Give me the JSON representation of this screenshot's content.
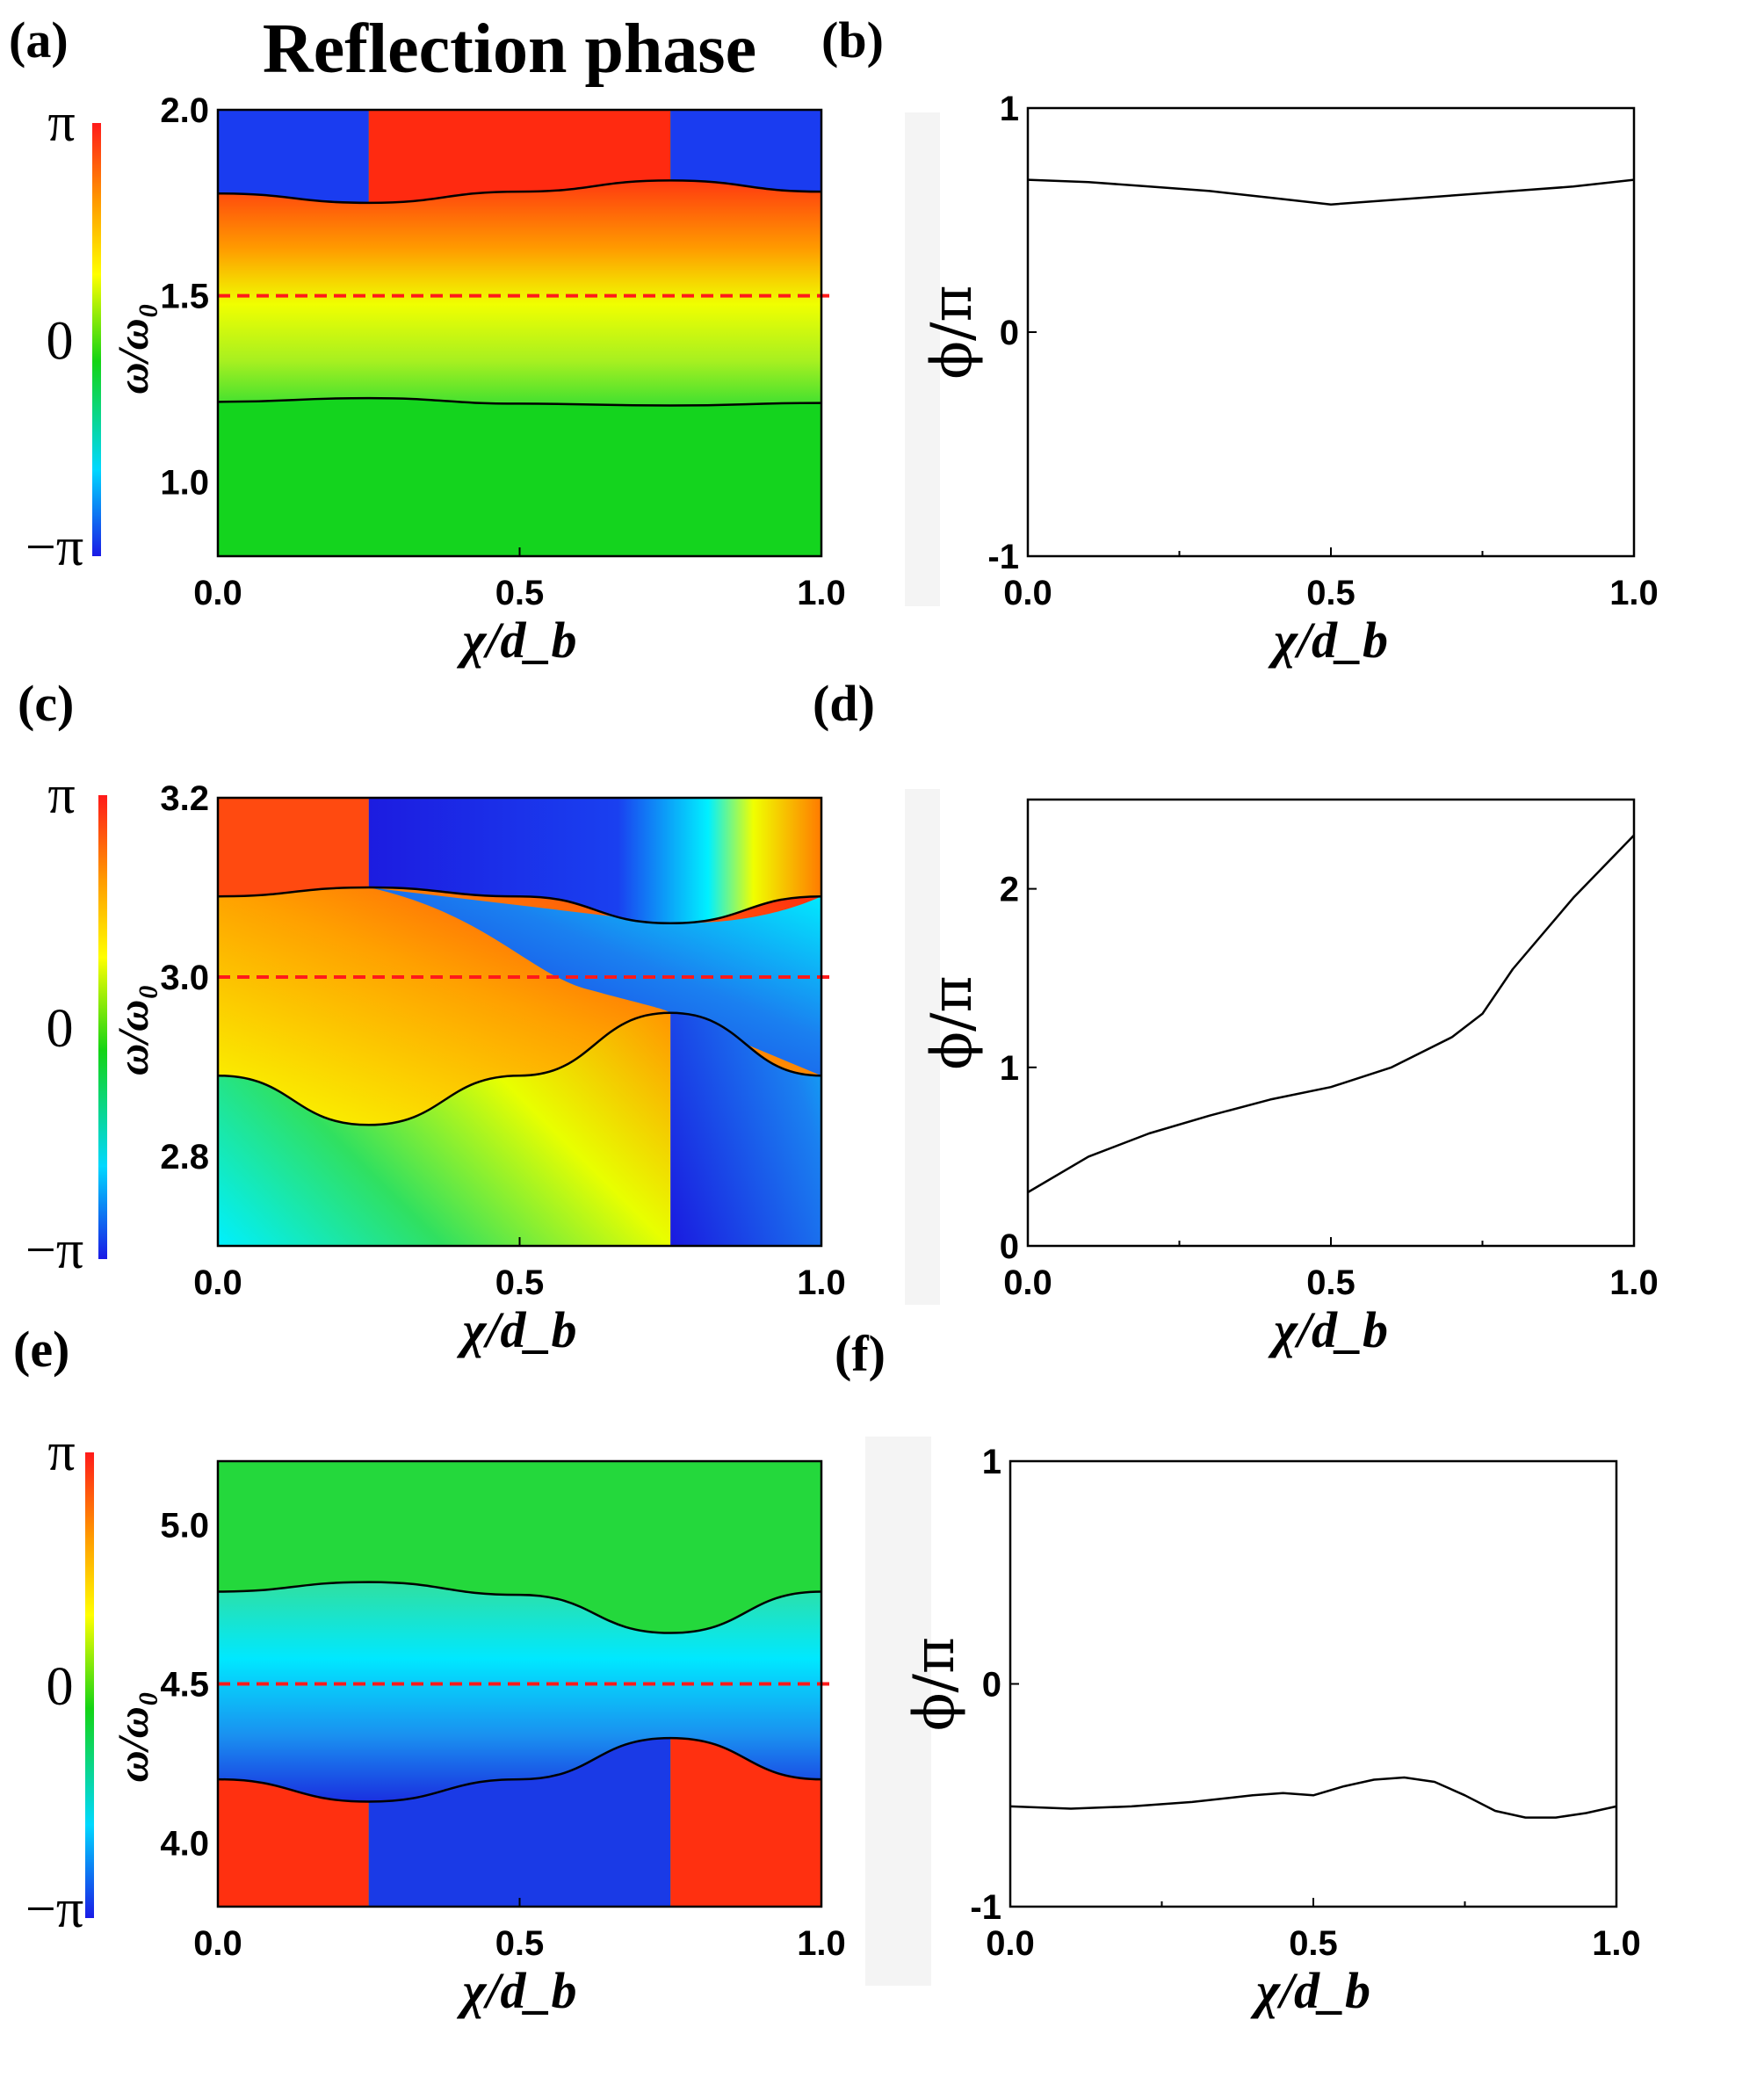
{
  "title": "Reflection phase",
  "colormap": {
    "stops": [
      "#1a1ae6",
      "#00d8ff",
      "#14d414",
      "#ffff00",
      "#ff9900",
      "#ff1a1a"
    ],
    "tick_top": "π",
    "tick_mid": "0",
    "tick_bottom": "−π"
  },
  "chart_data": [
    {
      "panel": "(a)",
      "type": "heatmap",
      "xlabel": "χ/d_b",
      "ylabel": "ω/ω₀",
      "xlim": [
        0,
        1
      ],
      "ylim": [
        0.8,
        2.0
      ],
      "xticks": [
        "0.0",
        "0.5",
        "1.0"
      ],
      "yticks": [
        {
          "v": 1.0,
          "t": "1.0"
        },
        {
          "v": 1.5,
          "t": "1.5"
        },
        {
          "v": 2.0,
          "t": "2.0"
        }
      ],
      "dashed_line": 1.5,
      "boundaries": [
        {
          "x": [
            0,
            0.25,
            0.5,
            0.75,
            1.0
          ],
          "y": [
            1.775,
            1.75,
            1.78,
            1.81,
            1.78
          ]
        },
        {
          "x": [
            0,
            0.25,
            0.5,
            0.75,
            1.0
          ],
          "y": [
            1.215,
            1.225,
            1.21,
            1.205,
            1.212
          ]
        }
      ]
    },
    {
      "panel": "(b)",
      "type": "line",
      "xlabel": "χ/d_b",
      "ylabel": "ϕ/π",
      "xlim": [
        0,
        1
      ],
      "ylim": [
        -1,
        1
      ],
      "xticks": [
        "0.0",
        "0.5",
        "1.0"
      ],
      "yticks": [
        {
          "v": -1,
          "t": "-1"
        },
        {
          "v": 0,
          "t": "0"
        },
        {
          "v": 1,
          "t": "1"
        }
      ],
      "x": [
        0,
        0.1,
        0.2,
        0.3,
        0.4,
        0.5,
        0.6,
        0.7,
        0.8,
        0.9,
        1.0
      ],
      "y": [
        0.68,
        0.67,
        0.65,
        0.63,
        0.6,
        0.57,
        0.59,
        0.61,
        0.63,
        0.65,
        0.68
      ]
    },
    {
      "panel": "(c)",
      "type": "heatmap",
      "xlabel": "χ/d_b",
      "ylabel": "ω/ω₀",
      "xlim": [
        0,
        1
      ],
      "ylim": [
        2.7,
        3.2
      ],
      "xticks": [
        "0.0",
        "0.5",
        "1.0"
      ],
      "yticks": [
        {
          "v": 2.8,
          "t": "2.8"
        },
        {
          "v": 3.0,
          "t": "3.0"
        },
        {
          "v": 3.2,
          "t": "3.2"
        }
      ],
      "dashed_line": 3.0,
      "boundaries": [
        {
          "x": [
            0,
            0.25,
            0.5,
            0.75,
            1.0
          ],
          "y": [
            3.09,
            3.1,
            3.09,
            3.06,
            3.09
          ]
        },
        {
          "x": [
            0,
            0.25,
            0.5,
            0.75,
            1.0
          ],
          "y": [
            2.89,
            2.835,
            2.89,
            2.96,
            2.89
          ]
        }
      ]
    },
    {
      "panel": "(d)",
      "type": "line",
      "xlabel": "χ/d_b",
      "ylabel": "ϕ/π",
      "xlim": [
        0,
        1
      ],
      "ylim": [
        0,
        2.5
      ],
      "xticks": [
        "0.0",
        "0.5",
        "1.0"
      ],
      "yticks": [
        {
          "v": 0,
          "t": "0"
        },
        {
          "v": 1,
          "t": "1"
        },
        {
          "v": 2,
          "t": "2"
        }
      ],
      "x": [
        0,
        0.1,
        0.2,
        0.3,
        0.4,
        0.5,
        0.6,
        0.7,
        0.75,
        0.8,
        0.9,
        1.0
      ],
      "y": [
        0.3,
        0.5,
        0.63,
        0.73,
        0.82,
        0.89,
        1.0,
        1.17,
        1.3,
        1.55,
        1.95,
        2.3
      ]
    },
    {
      "panel": "(e)",
      "type": "heatmap",
      "xlabel": "χ/d_b",
      "ylabel": "ω/ω₀",
      "xlim": [
        0,
        1
      ],
      "ylim": [
        3.8,
        5.2
      ],
      "xticks": [
        "0.0",
        "0.5",
        "1.0"
      ],
      "yticks": [
        {
          "v": 4.0,
          "t": "4.0"
        },
        {
          "v": 4.5,
          "t": "4.5"
        },
        {
          "v": 5.0,
          "t": "5.0"
        }
      ],
      "dashed_line": 4.5,
      "boundaries": [
        {
          "x": [
            0,
            0.25,
            0.5,
            0.75,
            1.0
          ],
          "y": [
            4.79,
            4.82,
            4.78,
            4.66,
            4.79
          ]
        },
        {
          "x": [
            0,
            0.25,
            0.5,
            0.75,
            1.0
          ],
          "y": [
            4.2,
            4.13,
            4.2,
            4.33,
            4.2
          ]
        }
      ]
    },
    {
      "panel": "(f)",
      "type": "line",
      "xlabel": "χ/d_b",
      "ylabel": "ϕ/π",
      "xlim": [
        0,
        1
      ],
      "ylim": [
        -1,
        1
      ],
      "xticks": [
        "0.0",
        "0.5",
        "1.0"
      ],
      "yticks": [
        {
          "v": -1,
          "t": "-1"
        },
        {
          "v": 0,
          "t": "0"
        },
        {
          "v": 1,
          "t": "1"
        }
      ],
      "x": [
        0,
        0.1,
        0.2,
        0.3,
        0.4,
        0.45,
        0.5,
        0.55,
        0.6,
        0.65,
        0.7,
        0.75,
        0.8,
        0.85,
        0.9,
        0.95,
        1.0
      ],
      "y": [
        -0.55,
        -0.56,
        -0.55,
        -0.53,
        -0.5,
        -0.49,
        -0.5,
        -0.46,
        -0.43,
        -0.42,
        -0.44,
        -0.5,
        -0.57,
        -0.6,
        -0.6,
        -0.58,
        -0.55
      ]
    }
  ]
}
